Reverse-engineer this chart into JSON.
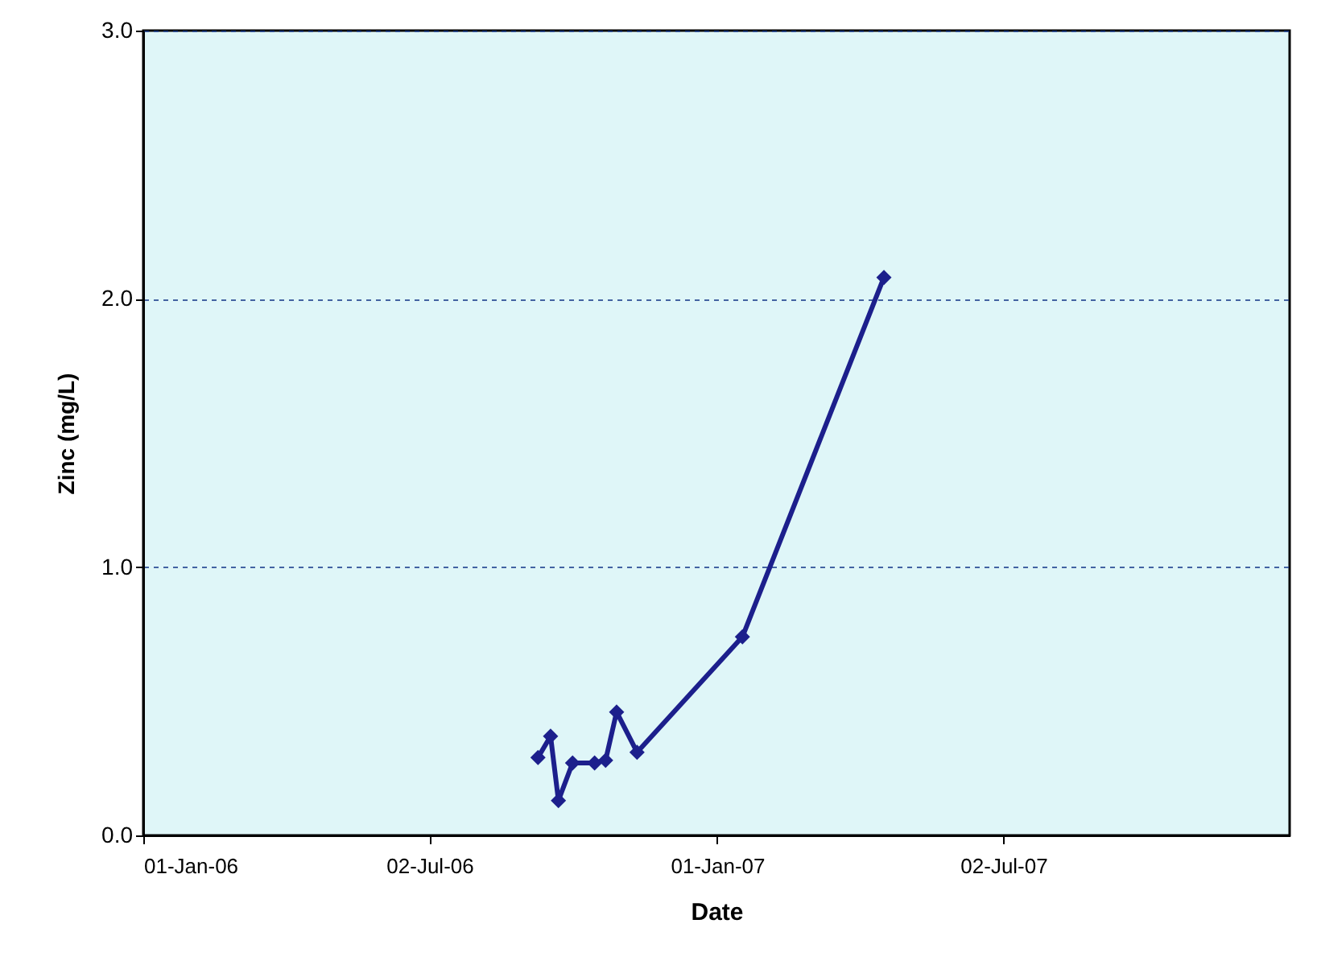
{
  "chart_data": {
    "type": "line",
    "xlabel": "Date",
    "ylabel": "Zinc (mg/L)",
    "x": [
      "2006-09-09",
      "2006-09-17",
      "2006-09-22",
      "2006-10-01",
      "2006-10-15",
      "2006-10-22",
      "2006-10-29",
      "2006-11-11",
      "2007-01-17",
      "2007-04-17"
    ],
    "series": [
      {
        "color": "#1c1f8c",
        "values": [
          0.29,
          0.37,
          0.13,
          0.27,
          0.27,
          0.28,
          0.46,
          0.31,
          0.74,
          2.08
        ]
      }
    ],
    "xlim": [
      "2006-01-01",
      "2007-12-31"
    ],
    "xticks": [
      {
        "value": "2006-01-01",
        "label": "01-Jan-06"
      },
      {
        "value": "2006-07-02",
        "label": "02-Jul-06"
      },
      {
        "value": "2007-01-01",
        "label": "01-Jan-07"
      },
      {
        "value": "2007-07-02",
        "label": "02-Jul-07"
      }
    ],
    "ylim": [
      0,
      3
    ],
    "yticks": [
      {
        "value": 0,
        "label": "0.0"
      },
      {
        "value": 1,
        "label": "1.0"
      },
      {
        "value": 2,
        "label": "2.0"
      },
      {
        "value": 3,
        "label": "3.0"
      }
    ],
    "grid": "y",
    "marker": "diamond",
    "line_style": "solid"
  }
}
